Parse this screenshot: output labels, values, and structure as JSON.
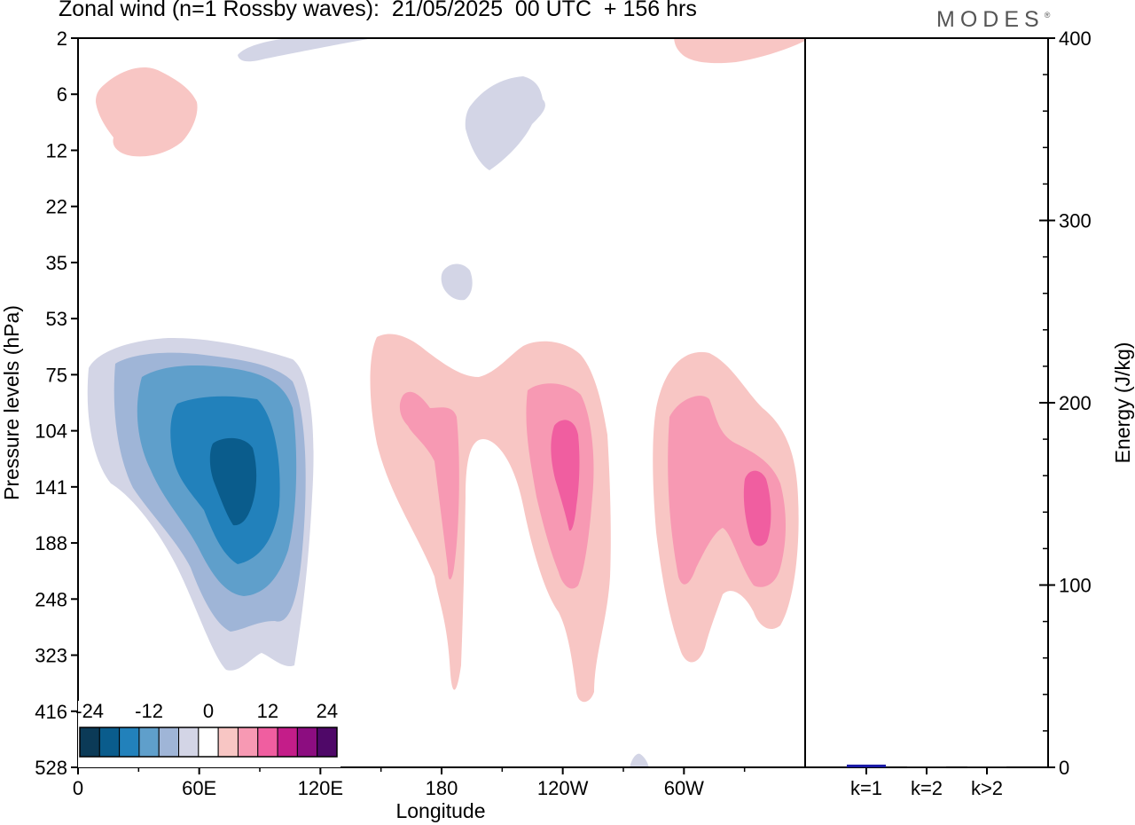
{
  "header": {
    "title": "Zonal wind (n=1 Rossby waves):  21/05/2025  00 UTC  + 156 hrs",
    "brand": "MODES"
  },
  "chart_data": [
    {
      "type": "heatmap",
      "title": "Zonal wind (n=1 Rossby waves):  21/05/2025  00 UTC  + 156 hrs",
      "xlabel": "Longitude",
      "ylabel": "Pressure levels (hPa)",
      "x_ticks": [
        "0",
        "60E",
        "120E",
        "180",
        "120W",
        "60W"
      ],
      "x_range": [
        0,
        360
      ],
      "y_ticks": [
        "2",
        "6",
        "12",
        "22",
        "35",
        "53",
        "75",
        "104",
        "141",
        "188",
        "248",
        "323",
        "416",
        "528"
      ],
      "colorbar": {
        "labels": [
          "-24",
          "-12",
          "0",
          "12",
          "24"
        ],
        "levels": [
          -24,
          -20,
          -16,
          -12,
          -8,
          -4,
          0,
          4,
          8,
          12,
          16,
          20,
          24
        ],
        "colors": [
          "#0b3a57",
          "#0a5c8c",
          "#2281bb",
          "#5f9fcb",
          "#9fb5d7",
          "#d3d5e6",
          "#ffffff",
          "#f8c6c4",
          "#f799b3",
          "#f05ea0",
          "#c41d89",
          "#8c0d80",
          "#4f0868"
        ]
      },
      "features": [
        {
          "sign": "negative",
          "longitude": 75,
          "pressure": 141,
          "peak": -20
        },
        {
          "sign": "positive",
          "longitude": 185,
          "pressure": 141,
          "peak": 8
        },
        {
          "sign": "positive",
          "longitude": 240,
          "pressure": 141,
          "peak": 12
        },
        {
          "sign": "positive",
          "longitude": 330,
          "pressure": 160,
          "peak": 12
        },
        {
          "sign": "positive",
          "longitude": 30,
          "pressure": 8,
          "peak": 4
        },
        {
          "sign": "negative",
          "longitude": 210,
          "pressure": 8,
          "peak": -4
        },
        {
          "sign": "negative",
          "longitude": 188,
          "pressure": 40,
          "peak": -4
        },
        {
          "sign": "negative",
          "longitude": 115,
          "pressure": 2,
          "peak": -4
        },
        {
          "sign": "positive",
          "longitude": 320,
          "pressure": 2,
          "peak": 4
        }
      ]
    },
    {
      "type": "bar",
      "ylabel": "Energy (J/kg)",
      "ylim": [
        0,
        400
      ],
      "y_ticks": [
        "0",
        "100",
        "200",
        "300",
        "400"
      ],
      "categories": [
        "k=1",
        "k=2",
        "k>2"
      ],
      "values": [
        1.5,
        0.5,
        0.5
      ],
      "colors": [
        "#1a1aa6",
        "#222222",
        "#222222"
      ]
    }
  ]
}
